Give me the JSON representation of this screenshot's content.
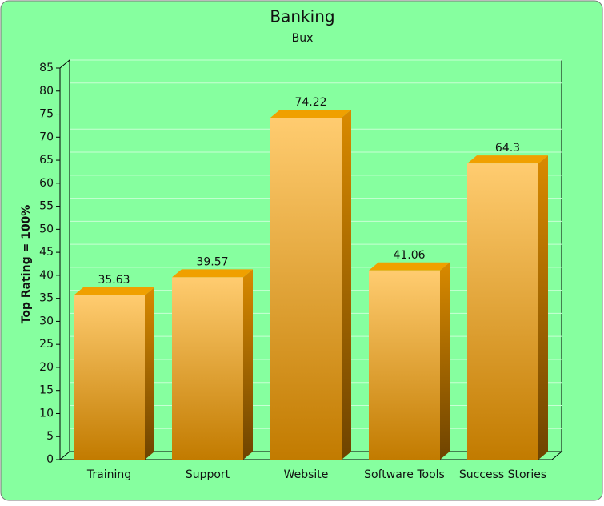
{
  "chart_data": {
    "type": "bar3d",
    "title": "Banking",
    "subtitle": "Bux",
    "y_label": "Top Rating = 100%",
    "categories": [
      "Training",
      "Support",
      "Website",
      "Software Tools",
      "Success Stories"
    ],
    "values": [
      35.63,
      39.57,
      74.22,
      41.06,
      64.3
    ],
    "color": "#f0a000",
    "ylim": [
      0,
      85
    ],
    "yticks": [
      0,
      5,
      10,
      15,
      20,
      25,
      30,
      35,
      40,
      45,
      50,
      55,
      60,
      65,
      70,
      75,
      80,
      85
    ],
    "grid": true
  }
}
